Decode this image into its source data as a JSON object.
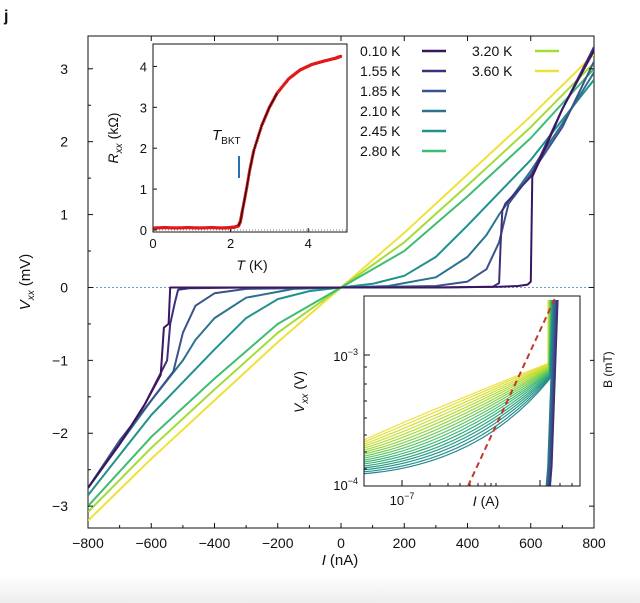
{
  "chart_data": [
    {
      "panel": "main",
      "panel_label": "j",
      "type": "line",
      "xlabel_var": "I",
      "xlabel_unit": "(nA)",
      "ylabel_var": "V",
      "ylabel_sub": "xx",
      "ylabel_unit": "(mV)",
      "xlim": [
        -800,
        800
      ],
      "ylim": [
        -3.3,
        3.45
      ],
      "xticks": [
        -800,
        -600,
        -400,
        -200,
        0,
        200,
        400,
        600,
        800
      ],
      "xtick_labels": [
        "−800",
        "−600",
        "−400",
        "−200",
        "0",
        "200",
        "400",
        "600",
        "800"
      ],
      "yticks": [
        -3,
        -2,
        -1,
        0,
        1,
        2,
        3
      ],
      "ytick_labels": [
        "−3",
        "−2",
        "−1",
        "0",
        "1",
        "2",
        "3"
      ],
      "baseline_dashed_y": 0,
      "legend_placement": "top-right",
      "series": [
        {
          "name": "0.10 K",
          "color": "#3b1560",
          "x": [
            -800,
            -700,
            -620,
            -570,
            -560,
            -545,
            -540,
            -500,
            -300,
            0,
            300,
            500,
            560,
            590,
            600,
            605,
            650,
            700,
            800
          ],
          "y": [
            -2.75,
            -2.15,
            -1.6,
            -1.2,
            -0.55,
            -0.5,
            0,
            0,
            0,
            0,
            0,
            0.01,
            0.02,
            0.04,
            0.08,
            1.52,
            1.95,
            2.45,
            3.25
          ]
        },
        {
          "name": "1.55 K",
          "color": "#3d2f7a",
          "x": [
            -800,
            -700,
            -620,
            -550,
            -540,
            -525,
            -515,
            -480,
            -300,
            0,
            300,
            480,
            500,
            505,
            510,
            520,
            600,
            700,
            800
          ],
          "y": [
            -2.75,
            -2.15,
            -1.6,
            -1.0,
            -0.5,
            -0.2,
            -0.03,
            -0.01,
            0,
            0,
            0,
            0.01,
            0.06,
            0.62,
            1.05,
            1.15,
            1.52,
            2.45,
            3.3
          ]
        },
        {
          "name": "1.85 K",
          "color": "#3b528b",
          "x": [
            -800,
            -700,
            -600,
            -530,
            -500,
            -460,
            -400,
            -300,
            0,
            300,
            400,
            460,
            500,
            530,
            600,
            700,
            800
          ],
          "y": [
            -2.75,
            -2.1,
            -1.55,
            -1.15,
            -0.62,
            -0.25,
            -0.08,
            -0.02,
            0,
            0.02,
            0.08,
            0.25,
            0.62,
            1.15,
            1.55,
            2.2,
            3.1
          ]
        },
        {
          "name": "2.10 K",
          "color": "#2c728e",
          "x": [
            -800,
            -700,
            -600,
            -500,
            -460,
            -400,
            -300,
            -150,
            0,
            150,
            300,
            400,
            460,
            500,
            600,
            700,
            800
          ],
          "y": [
            -2.75,
            -2.15,
            -1.55,
            -1.0,
            -0.72,
            -0.42,
            -0.14,
            -0.02,
            0,
            0.02,
            0.14,
            0.42,
            0.72,
            1.0,
            1.6,
            2.25,
            2.95
          ]
        },
        {
          "name": "2.45 K",
          "color": "#21918c",
          "x": [
            -800,
            -700,
            -600,
            -500,
            -400,
            -300,
            -200,
            -100,
            0,
            100,
            200,
            300,
            400,
            500,
            600,
            700,
            800
          ],
          "y": [
            -2.85,
            -2.3,
            -1.75,
            -1.3,
            -0.85,
            -0.42,
            -0.16,
            -0.05,
            0,
            0.05,
            0.16,
            0.42,
            0.85,
            1.3,
            1.75,
            2.3,
            2.85
          ]
        },
        {
          "name": "2.80 K",
          "color": "#3fbc73",
          "x": [
            -800,
            -600,
            -400,
            -200,
            0,
            200,
            400,
            600,
            800
          ],
          "y": [
            -3.0,
            -2.05,
            -1.25,
            -0.5,
            0,
            0.5,
            1.25,
            2.05,
            3.0
          ]
        },
        {
          "name": "3.20 K",
          "color": "#a5db36",
          "x": [
            -800,
            -600,
            -400,
            -200,
            0,
            200,
            400,
            600,
            800
          ],
          "y": [
            -3.08,
            -2.2,
            -1.4,
            -0.62,
            0,
            0.62,
            1.4,
            2.2,
            3.08
          ]
        },
        {
          "name": "3.60 K",
          "color": "#f0e13a",
          "x": [
            -800,
            -600,
            -400,
            -200,
            0,
            200,
            400,
            600,
            800
          ],
          "y": [
            -3.2,
            -2.35,
            -1.55,
            -0.75,
            0,
            0.75,
            1.55,
            2.35,
            3.2
          ]
        }
      ],
      "legend_col1": [
        "0.10 K",
        "1.55 K",
        "1.85 K",
        "2.10 K",
        "2.45 K",
        "2.80 K"
      ],
      "legend_col2": [
        "3.20 K",
        "3.60 K"
      ]
    },
    {
      "panel": "inset-top-left",
      "type": "scatter",
      "xlabel_var": "T",
      "xlabel_unit": "(K)",
      "ylabel_var": "R",
      "ylabel_sub": "xx",
      "ylabel_unit": "(kΩ)",
      "xlim": [
        0,
        5
      ],
      "ylim": [
        0,
        4.5
      ],
      "xticks": [
        0,
        2,
        4
      ],
      "yticks": [
        0,
        1,
        2,
        3,
        4
      ],
      "marker_color": "#e0191b",
      "fit_color": "#111111",
      "annotation_var": "T",
      "annotation_sub": "BKT",
      "annotation_x": 2.2,
      "x": [
        0.05,
        0.3,
        0.6,
        0.9,
        1.2,
        1.5,
        1.8,
        2.0,
        2.1,
        2.2,
        2.25,
        2.3,
        2.4,
        2.5,
        2.6,
        2.8,
        3.0,
        3.2,
        3.5,
        3.8,
        4.1,
        4.4,
        4.7,
        4.85
      ],
      "y": [
        0.05,
        0.06,
        0.05,
        0.06,
        0.05,
        0.06,
        0.05,
        0.06,
        0.07,
        0.1,
        0.2,
        0.45,
        0.95,
        1.5,
        1.95,
        2.55,
        3.0,
        3.35,
        3.7,
        3.92,
        4.05,
        4.13,
        4.2,
        4.25
      ]
    },
    {
      "panel": "inset-bottom-right",
      "type": "line",
      "xscale": "log",
      "yscale": "log",
      "xlabel_var": "I",
      "xlabel_unit": "(A)",
      "ylabel_var": "V",
      "ylabel_sub": "xx",
      "ylabel_unit": "(V)",
      "xtick_label_base": "10",
      "xtick_label_exp": "−7",
      "ytick_labels": [
        {
          "base": "10",
          "exp": "−3"
        },
        {
          "base": "10",
          "exp": "−4"
        }
      ],
      "n_curves": 32,
      "color_map": [
        "#f0e13a",
        "#a5db36",
        "#3fbc73",
        "#21918c",
        "#2c728e",
        "#3b528b",
        "#3d2f7a"
      ],
      "dashed_fit_color": "#c0392b"
    }
  ],
  "clipped_label_right": "B (mT)"
}
